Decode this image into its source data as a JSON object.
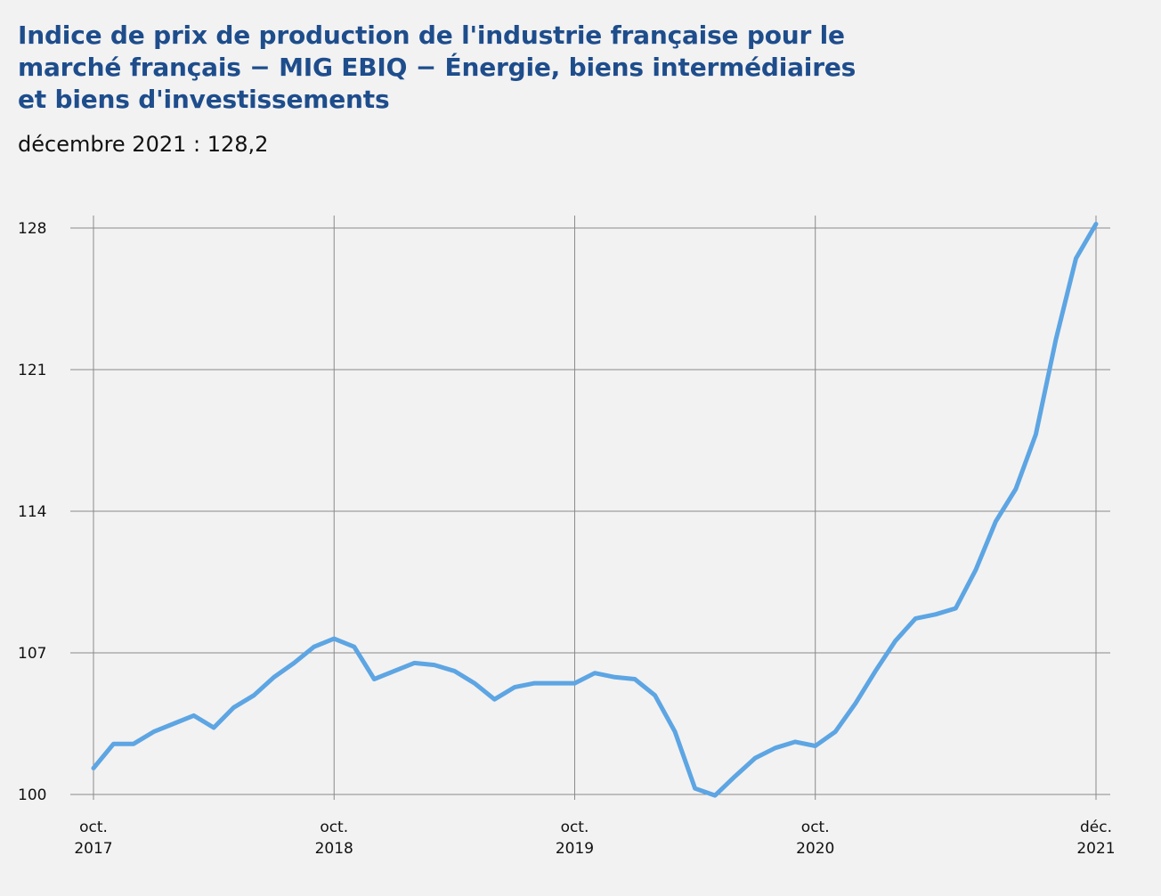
{
  "chart_data": {
    "type": "line",
    "title": "Indice de prix de production de l'industrie française pour le marché français − MIG EBIQ − Énergie, biens intermédiaires et biens d'investissements",
    "subtitle": "décembre 2021 : 128,2",
    "xlabel": "",
    "ylabel": "",
    "grid": true,
    "legend": "none",
    "line_color": "#5da5e3",
    "ylim": [
      100,
      128
    ],
    "yticks": [
      {
        "value": 100,
        "label": "100"
      },
      {
        "value": 107,
        "label": "107"
      },
      {
        "value": 114,
        "label": "114"
      },
      {
        "value": 121,
        "label": "121"
      },
      {
        "value": 128,
        "label": "128"
      }
    ],
    "xticks": [
      {
        "x": "2017-10",
        "line1": "oct.",
        "line2": "2017"
      },
      {
        "x": "2018-10",
        "line1": "oct.",
        "line2": "2018"
      },
      {
        "x": "2019-10",
        "line1": "oct.",
        "line2": "2019"
      },
      {
        "x": "2020-10",
        "line1": "oct.",
        "line2": "2020"
      },
      {
        "x": "2021-12",
        "line1": "déc.",
        "line2": "2021"
      }
    ],
    "x": [
      "2017-10",
      "2017-11",
      "2017-12",
      "2018-01",
      "2018-02",
      "2018-03",
      "2018-04",
      "2018-05",
      "2018-06",
      "2018-07",
      "2018-08",
      "2018-09",
      "2018-10",
      "2018-11",
      "2018-12",
      "2019-01",
      "2019-02",
      "2019-03",
      "2019-04",
      "2019-05",
      "2019-06",
      "2019-07",
      "2019-08",
      "2019-09",
      "2019-10",
      "2019-11",
      "2019-12",
      "2020-01",
      "2020-02",
      "2020-03",
      "2020-04",
      "2020-05",
      "2020-06",
      "2020-07",
      "2020-08",
      "2020-09",
      "2020-10",
      "2020-11",
      "2020-12",
      "2021-01",
      "2021-02",
      "2021-03",
      "2021-04",
      "2021-05",
      "2021-06",
      "2021-07",
      "2021-08",
      "2021-09",
      "2021-10",
      "2021-11",
      "2021-12"
    ],
    "series": [
      {
        "values": [
          101.3,
          102.5,
          102.5,
          103.1,
          103.5,
          103.9,
          103.3,
          104.3,
          104.9,
          105.8,
          106.5,
          107.3,
          107.7,
          107.3,
          105.7,
          106.1,
          106.5,
          106.4,
          106.1,
          105.5,
          104.7,
          105.3,
          105.5,
          105.5,
          105.5,
          106.0,
          105.8,
          105.7,
          104.9,
          103.1,
          100.3,
          99.95,
          100.9,
          101.8,
          102.3,
          102.6,
          102.4,
          103.1,
          104.5,
          106.1,
          107.6,
          108.7,
          108.9,
          109.2,
          111.1,
          113.5,
          115.1,
          117.8,
          122.5,
          126.5,
          128.2
        ]
      }
    ]
  }
}
